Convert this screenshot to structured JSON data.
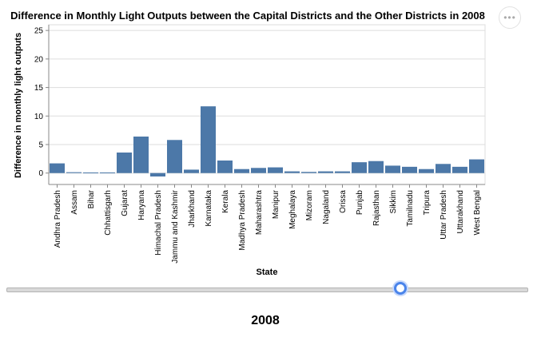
{
  "chart_data": {
    "type": "bar",
    "title": "Difference in Monthly Light Outputs between the Capital Districts and the Other Districts in 2008",
    "xlabel": "State",
    "ylabel": "Difference in monthly light outputs",
    "ylim": [
      -2,
      26
    ],
    "yticks": [
      0,
      5,
      10,
      15,
      20,
      25
    ],
    "grid": true,
    "categories": [
      "Andhra Pradesh",
      "Assam",
      "Bihar",
      "Chhattisgarh",
      "Gujarat",
      "Haryana",
      "Himachal Pradesh",
      "Jammu and Kashmir",
      "Jharkhand",
      "Karnataka",
      "Kerala",
      "Madhya Pradesh",
      "Maharashtra",
      "Manipur",
      "Meghalaya",
      "Mizoram",
      "Nagaland",
      "Orissa",
      "Punjab",
      "Rajasthan",
      "Sikkim",
      "Tamilnadu",
      "Tripura",
      "Uttar Pradesh",
      "Uttarakhand",
      "West Bengal"
    ],
    "values": [
      1.7,
      0.15,
      0.1,
      0.1,
      3.6,
      6.4,
      -0.6,
      5.8,
      0.6,
      11.7,
      2.2,
      0.7,
      0.9,
      1.0,
      0.3,
      0.2,
      0.3,
      0.3,
      1.9,
      2.1,
      1.3,
      1.1,
      0.7,
      1.6,
      1.1,
      2.4
    ],
    "bar_color": "#4c78a8"
  },
  "slider": {
    "value": 2008,
    "min": 1992,
    "max": 2013,
    "label": "2008",
    "thumb_color": "#4a84ea"
  },
  "menu": {
    "icon": "more-horizontal-icon",
    "glyph": "•••"
  }
}
